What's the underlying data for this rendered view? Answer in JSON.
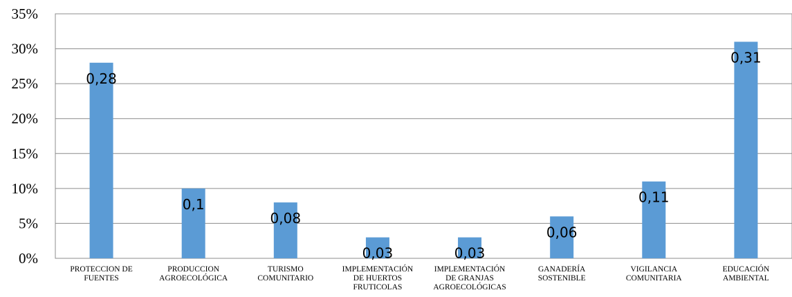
{
  "chart_data": {
    "type": "bar",
    "categories": [
      [
        "PROTECCION DE",
        "FUENTES"
      ],
      [
        "PRODUCCION",
        "AGROECOLÓGICA"
      ],
      [
        "TURISMO",
        "COMUNITARIO"
      ],
      [
        "IMPLEMENTACIÓN",
        "DE HUERTOS",
        "FRUTICOLAS"
      ],
      [
        "IMPLEMENTACIÓN",
        "DE GRANJAS",
        "AGROECOLÓGICAS"
      ],
      [
        "GANADERÍA",
        "SOSTENIBLE"
      ],
      [
        "VIGILANCIA",
        "COMUNITARIA"
      ],
      [
        "EDUCACIÓN",
        "AMBIENTAL"
      ]
    ],
    "values": [
      0.28,
      0.1,
      0.08,
      0.03,
      0.03,
      0.06,
      0.11,
      0.31
    ],
    "data_labels": [
      "0,28",
      "0,1",
      "0,08",
      "0,03",
      "0,03",
      "0,06",
      "0,11",
      "0,31"
    ],
    "ylim": [
      0,
      0.35
    ],
    "yticks": [
      "0%",
      "5%",
      "10%",
      "15%",
      "20%",
      "25%",
      "30%",
      "35%"
    ],
    "grid": true,
    "bar_color": "#5b9bd5"
  }
}
